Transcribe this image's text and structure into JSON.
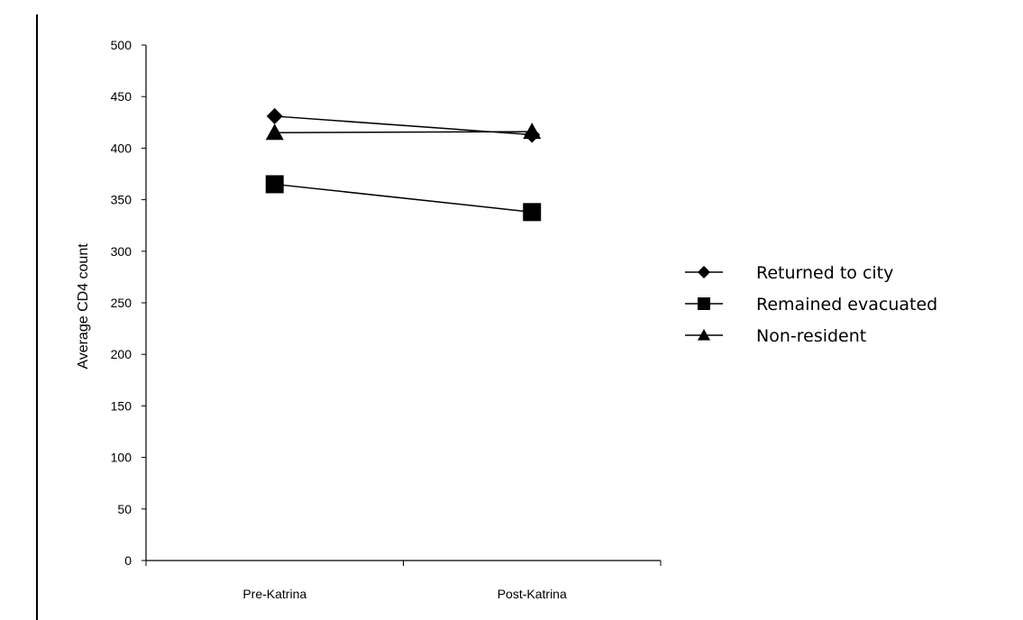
{
  "chart_data": {
    "type": "line",
    "title": "",
    "xlabel": "",
    "ylabel": "Average CD4 count",
    "categories": [
      "Pre-Katrina",
      "Post-Katrina"
    ],
    "ylim": [
      0,
      500
    ],
    "yticks": [
      0,
      50,
      100,
      150,
      200,
      250,
      300,
      350,
      400,
      450,
      500
    ],
    "grid": false,
    "legend_position": "right",
    "series": [
      {
        "name": "Returned to city",
        "values": [
          431,
          413
        ],
        "marker": "diamond",
        "color": "#000000"
      },
      {
        "name": "Remained evacuated",
        "values": [
          365,
          338
        ],
        "marker": "square",
        "color": "#000000"
      },
      {
        "name": "Non-resident",
        "values": [
          415,
          416
        ],
        "marker": "triangle",
        "color": "#000000"
      }
    ]
  }
}
